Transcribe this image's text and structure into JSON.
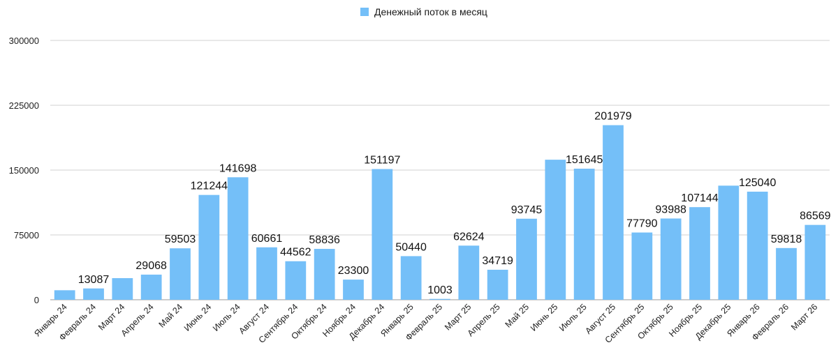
{
  "chart_data": {
    "type": "bar",
    "legend": {
      "position": "top-center",
      "entries": [
        {
          "name": "Денежный поток в месяц",
          "color": "#74bff8"
        }
      ]
    },
    "grid": true,
    "ylim": [
      0,
      300000
    ],
    "yticks": [
      0,
      75000,
      150000,
      225000,
      300000
    ],
    "categories": [
      "Январь 24",
      "Февраль 24",
      "Март 24",
      "Апрель 24",
      "Май 24",
      "Июнь 24",
      "Июль 24",
      "Август 24",
      "Сентябрь 24",
      "Октябрь 24",
      "Ноябрь 24",
      "Декабрь 24",
      "Январь 25",
      "Февраль 25",
      "Март 25",
      "Апрель 25",
      "Май 25",
      "Июнь 25",
      "Июль 25",
      "Август 25",
      "Сентябрь 25",
      "Октябрь 25",
      "Ноябрь 25",
      "Декабрь 25",
      "Январь 26",
      "Февраль 26",
      "Март 26"
    ],
    "series": [
      {
        "name": "Денежный поток в месяц",
        "color": "#74bff8",
        "values": [
          11000,
          13087,
          25000,
          29068,
          59503,
          121244,
          141698,
          60661,
          44562,
          58836,
          23300,
          151197,
          50440,
          1003,
          62624,
          34719,
          93745,
          162000,
          151645,
          201979,
          77790,
          93988,
          107144,
          132000,
          125040,
          59818,
          86569
        ],
        "data_labels": [
          "",
          "13087",
          "",
          "29068",
          "59503",
          "121244",
          "141698",
          "60661",
          "44562",
          "58836",
          "23300",
          "151197",
          "50440",
          "1003",
          "62624",
          "34719",
          "93745",
          "",
          "151645",
          "201979",
          "77790",
          "93988",
          "107144",
          "",
          "125040",
          "59818",
          "86569"
        ]
      }
    ]
  }
}
